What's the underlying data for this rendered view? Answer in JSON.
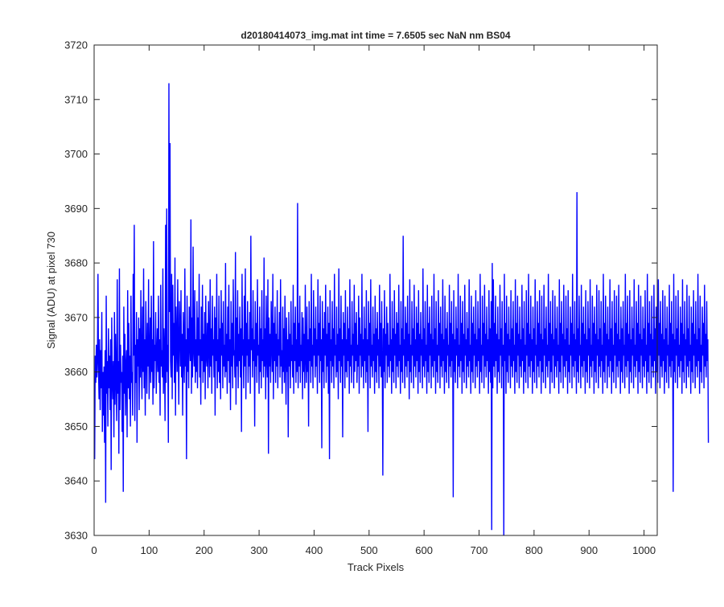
{
  "chart_data": {
    "type": "line",
    "title": "d20180414073_img.mat int time = 7.6505 sec  NaN nm BS04",
    "xlabel": "Track Pixels",
    "ylabel": "Signal (ADU) at pixel 730",
    "xlim": [
      0,
      1024
    ],
    "ylim": [
      3630,
      3720
    ],
    "x_ticks": [
      0,
      100,
      200,
      300,
      400,
      500,
      600,
      700,
      800,
      900,
      1000
    ],
    "y_ticks": [
      3630,
      3640,
      3650,
      3660,
      3670,
      3680,
      3690,
      3700,
      3710,
      3720
    ],
    "grid": false,
    "legend": "none",
    "series_color": "#0000ff",
    "series": [
      {
        "x_start": 1,
        "x_step": 1,
        "count": 1024,
        "values": [
          3644,
          3663,
          3658,
          3665,
          3659,
          3662,
          3678,
          3660,
          3655,
          3666,
          3653,
          3664,
          3657,
          3671,
          3649,
          3660,
          3652,
          3661,
          3647,
          3664,
          3636,
          3674,
          3656,
          3662,
          3650,
          3668,
          3657,
          3663,
          3653,
          3666,
          3642,
          3670,
          3659,
          3655,
          3662,
          3648,
          3671,
          3654,
          3667,
          3659,
          3651,
          3677,
          3656,
          3662,
          3645,
          3679,
          3653,
          3665,
          3658,
          3660,
          3649,
          3663,
          3638,
          3672,
          3656,
          3667,
          3652,
          3661,
          3664,
          3648,
          3675,
          3657,
          3669,
          3655,
          3663,
          3650,
          3674,
          3658,
          3660,
          3652,
          3678,
          3663,
          3687,
          3651,
          3665,
          3658,
          3671,
          3647,
          3666,
          3661,
          3670,
          3653,
          3668,
          3659,
          3675,
          3662,
          3655,
          3672,
          3660,
          3679,
          3657,
          3666,
          3652,
          3673,
          3664,
          3656,
          3669,
          3661,
          3677,
          3655,
          3663,
          3670,
          3658,
          3674,
          3660,
          3666,
          3654,
          3684,
          3657,
          3665,
          3662,
          3671,
          3656,
          3663,
          3668,
          3660,
          3674,
          3658,
          3666,
          3652,
          3676,
          3661,
          3664,
          3659,
          3679,
          3656,
          3668,
          3663,
          3651,
          3687,
          3658,
          3690,
          3660,
          3665,
          3647,
          3713,
          3671,
          3702,
          3662,
          3659,
          3678,
          3655,
          3676,
          3663,
          3669,
          3658,
          3681,
          3652,
          3672,
          3666,
          3660,
          3677,
          3664,
          3654,
          3673,
          3668,
          3661,
          3675,
          3659,
          3667,
          3652,
          3671,
          3664,
          3658,
          3679,
          3661,
          3666,
          3644,
          3674,
          3660,
          3668,
          3657,
          3672,
          3665,
          3662,
          3688,
          3656,
          3670,
          3659,
          3683,
          3664,
          3661,
          3675,
          3658,
          3666,
          3660,
          3673,
          3657,
          3670,
          3663,
          3678,
          3659,
          3666,
          3654,
          3672,
          3662,
          3676,
          3658,
          3667,
          3660,
          3671,
          3655,
          3674,
          3663,
          3661,
          3669,
          3657,
          3673,
          3665,
          3659,
          3677,
          3661,
          3668,
          3656,
          3674,
          3663,
          3666,
          3659,
          3672,
          3652,
          3670,
          3662,
          3678,
          3657,
          3666,
          3660,
          3674,
          3658,
          3668,
          3655,
          3675,
          3663,
          3669,
          3657,
          3673,
          3661,
          3665,
          3659,
          3680,
          3660,
          3667,
          3656,
          3672,
          3662,
          3676,
          3658,
          3666,
          3653,
          3673,
          3661,
          3669,
          3657,
          3677,
          3663,
          3664,
          3659,
          3682,
          3654,
          3670,
          3661,
          3675,
          3657,
          3667,
          3662,
          3672,
          3659,
          3668,
          3649,
          3678,
          3663,
          3666,
          3657,
          3674,
          3661,
          3679,
          3655,
          3669,
          3663,
          3673,
          3658,
          3666,
          3661,
          3671,
          3656,
          3685,
          3664,
          3668,
          3659,
          3675,
          3662,
          3666,
          3650,
          3673,
          3661,
          3669,
          3658,
          3677,
          3663,
          3665,
          3656,
          3672,
          3660,
          3668,
          3657,
          3675,
          3662,
          3666,
          3659,
          3681,
          3661,
          3668,
          3655,
          3674,
          3663,
          3659,
          3677,
          3645,
          3670,
          3661,
          3667,
          3658,
          3673,
          3665,
          3660,
          3678,
          3655,
          3669,
          3662,
          3672,
          3658,
          3667,
          3661,
          3675,
          3657,
          3666,
          3663,
          3671,
          3659,
          3677,
          3661,
          3664,
          3656,
          3672,
          3660,
          3668,
          3658,
          3674,
          3663,
          3654,
          3670,
          3660,
          3666,
          3648,
          3671,
          3661,
          3667,
          3657,
          3673,
          3662,
          3665,
          3659,
          3676,
          3656,
          3669,
          3662,
          3672,
          3658,
          3666,
          3660,
          3691,
          3657,
          3669,
          3661,
          3674,
          3658,
          3665,
          3662,
          3671,
          3655,
          3670,
          3660,
          3667,
          3657,
          3676,
          3663,
          3658,
          3672,
          3660,
          3666,
          3650,
          3673,
          3662,
          3668,
          3658,
          3678,
          3661,
          3665,
          3657,
          3675,
          3663,
          3668,
          3659,
          3672,
          3661,
          3666,
          3656,
          3677,
          3663,
          3669,
          3658,
          3674,
          3662,
          3666,
          3646,
          3673,
          3660,
          3668,
          3657,
          3671,
          3663,
          3676,
          3658,
          3667,
          3661,
          3672,
          3656,
          3669,
          3644,
          3675,
          3662,
          3666,
          3658,
          3673,
          3661,
          3668,
          3657,
          3678,
          3663,
          3665,
          3659,
          3672,
          3660,
          3667,
          3655,
          3679,
          3662,
          3668,
          3658,
          3674,
          3661,
          3666,
          3648,
          3671,
          3663,
          3669,
          3657,
          3675,
          3660,
          3666,
          3659,
          3672,
          3662,
          3668,
          3656,
          3677,
          3661,
          3665,
          3658,
          3673,
          3663,
          3667,
          3657,
          3676,
          3660,
          3669,
          3662,
          3671,
          3658,
          3665,
          3661,
          3674,
          3656,
          3670,
          3663,
          3667,
          3659,
          3678,
          3661,
          3666,
          3657,
          3672,
          3662,
          3668,
          3658,
          3675,
          3660,
          3666,
          3649,
          3673,
          3663,
          3669,
          3657,
          3677,
          3661,
          3665,
          3659,
          3672,
          3662,
          3667,
          3656,
          3674,
          3660,
          3668,
          3658,
          3671,
          3663,
          3666,
          3657,
          3676,
          3661,
          3669,
          3659,
          3673,
          3662,
          3641,
          3668,
          3660,
          3675,
          3657,
          3667,
          3663,
          3672,
          3658,
          3669,
          3661,
          3665,
          3659,
          3678,
          3662,
          3666,
          3656,
          3673,
          3660,
          3668,
          3658,
          3675,
          3663,
          3667,
          3657,
          3671,
          3661,
          3669,
          3659,
          3676,
          3662,
          3665,
          3656,
          3673,
          3660,
          3668,
          3658,
          3685,
          3663,
          3666,
          3657,
          3672,
          3661,
          3669,
          3659,
          3674,
          3662,
          3667,
          3655,
          3677,
          3660,
          3665,
          3658,
          3673,
          3663,
          3668,
          3657,
          3676,
          3661,
          3666,
          3659,
          3672,
          3662,
          3669,
          3656,
          3675,
          3660,
          3667,
          3658,
          3671,
          3663,
          3666,
          3657,
          3679,
          3661,
          3668,
          3659,
          3673,
          3662,
          3665,
          3656,
          3676,
          3660,
          3669,
          3658,
          3672,
          3663,
          3667,
          3657,
          3674,
          3661,
          3666,
          3659,
          3678,
          3662,
          3668,
          3656,
          3673,
          3660,
          3665,
          3658,
          3675,
          3663,
          3669,
          3657,
          3672,
          3661,
          3667,
          3659,
          3677,
          3662,
          3666,
          3656,
          3674,
          3660,
          3668,
          3658,
          3671,
          3663,
          3665,
          3657,
          3676,
          3661,
          3669,
          3659,
          3673,
          3662,
          3667,
          3637,
          3675,
          3660,
          3666,
          3658,
          3672,
          3663,
          3668,
          3657,
          3678,
          3661,
          3665,
          3659,
          3674,
          3662,
          3669,
          3656,
          3673,
          3660,
          3667,
          3658,
          3676,
          3663,
          3666,
          3657,
          3671,
          3661,
          3668,
          3659,
          3677,
          3662,
          3665,
          3656,
          3674,
          3660,
          3669,
          3658,
          3672,
          3663,
          3667,
          3657,
          3675,
          3661,
          3666,
          3659,
          3673,
          3662,
          3668,
          3656,
          3678,
          3660,
          3665,
          3658,
          3674,
          3663,
          3669,
          3657,
          3676,
          3661,
          3667,
          3659,
          3672,
          3662,
          3666,
          3656,
          3675,
          3660,
          3668,
          3658,
          3673,
          3631,
          3680,
          3657,
          3677,
          3661,
          3669,
          3659,
          3674,
          3662,
          3667,
          3656,
          3672,
          3660,
          3666,
          3658,
          3676,
          3663,
          3668,
          3657,
          3673,
          3661,
          3665,
          3630,
          3678,
          3662,
          3669,
          3656,
          3674,
          3660,
          3667,
          3658,
          3672,
          3663,
          3666,
          3657,
          3675,
          3661,
          3668,
          3659,
          3673,
          3662,
          3665,
          3656,
          3677,
          3660,
          3669,
          3658,
          3674,
          3663,
          3667,
          3657,
          3672,
          3661,
          3666,
          3659,
          3676,
          3662,
          3668,
          3656,
          3673,
          3660,
          3665,
          3658,
          3675,
          3663,
          3669,
          3657,
          3678,
          3661,
          3667,
          3659,
          3674,
          3662,
          3666,
          3656,
          3672,
          3660,
          3668,
          3658,
          3677,
          3663,
          3665,
          3657,
          3673,
          3661,
          3669,
          3659,
          3675,
          3662,
          3667,
          3656,
          3674,
          3660,
          3666,
          3658,
          3676,
          3663,
          3668,
          3657,
          3672,
          3661,
          3665,
          3659,
          3678,
          3662,
          3669,
          3656,
          3673,
          3660,
          3667,
          3658,
          3675,
          3663,
          3666,
          3657,
          3674,
          3661,
          3668,
          3659,
          3672,
          3662,
          3665,
          3656,
          3677,
          3660,
          3669,
          3658,
          3673,
          3663,
          3667,
          3657,
          3676,
          3661,
          3666,
          3659,
          3674,
          3662,
          3668,
          3656,
          3675,
          3660,
          3665,
          3658,
          3672,
          3663,
          3669,
          3657,
          3678,
          3661,
          3667,
          3659,
          3673,
          3662,
          3666,
          3656,
          3693,
          3660,
          3668,
          3658,
          3674,
          3663,
          3665,
          3657,
          3676,
          3661,
          3669,
          3659,
          3672,
          3662,
          3667,
          3656,
          3675,
          3660,
          3666,
          3658,
          3673,
          3663,
          3668,
          3657,
          3677,
          3661,
          3665,
          3659,
          3674,
          3662,
          3669,
          3656,
          3672,
          3660,
          3667,
          3658,
          3676,
          3663,
          3666,
          3657,
          3675,
          3661,
          3668,
          3659,
          3673,
          3662,
          3665,
          3656,
          3678,
          3660,
          3669,
          3658,
          3674,
          3663,
          3667,
          3657,
          3672,
          3661,
          3666,
          3659,
          3677,
          3662,
          3668,
          3656,
          3673,
          3660,
          3665,
          3658,
          3675,
          3663,
          3669,
          3657,
          3674,
          3661,
          3667,
          3659,
          3676,
          3662,
          3666,
          3656,
          3672,
          3660,
          3668,
          3658,
          3673,
          3663,
          3665,
          3657,
          3678,
          3661,
          3669,
          3659,
          3674,
          3662,
          3667,
          3656,
          3675,
          3660,
          3666,
          3658,
          3672,
          3663,
          3668,
          3657,
          3677,
          3661,
          3665,
          3659,
          3673,
          3662,
          3669,
          3656,
          3676,
          3660,
          3667,
          3658,
          3674,
          3663,
          3666,
          3657,
          3672,
          3661,
          3668,
          3659,
          3675,
          3662,
          3665,
          3656,
          3678,
          3660,
          3669,
          3658,
          3673,
          3663,
          3667,
          3657,
          3674,
          3661,
          3666,
          3659,
          3676,
          3662,
          3668,
          3656,
          3672,
          3660,
          3665,
          3658,
          3677,
          3663,
          3669,
          3657,
          3673,
          3661,
          3667,
          3659,
          3675,
          3662,
          3666,
          3656,
          3674,
          3660,
          3668,
          3658,
          3672,
          3663,
          3665,
          3657,
          3676,
          3661,
          3669,
          3659,
          3673,
          3662,
          3667,
          3638,
          3678,
          3660,
          3666,
          3658,
          3674,
          3663,
          3668,
          3657,
          3675,
          3661,
          3665,
          3659,
          3672,
          3662,
          3669,
          3656,
          3677,
          3660,
          3667,
          3658,
          3673,
          3663,
          3666,
          3657,
          3676,
          3661,
          3668,
          3659,
          3674,
          3662,
          3665,
          3656,
          3672,
          3660,
          3669,
          3658,
          3675,
          3663,
          3667,
          3657,
          3673,
          3661,
          3666,
          3659,
          3678,
          3662,
          3668,
          3656,
          3674,
          3660,
          3665,
          3658,
          3672,
          3663,
          3669,
          3657,
          3676,
          3661,
          3667,
          3659,
          3673,
          3662,
          3666,
          3647
        ]
      }
    ]
  }
}
